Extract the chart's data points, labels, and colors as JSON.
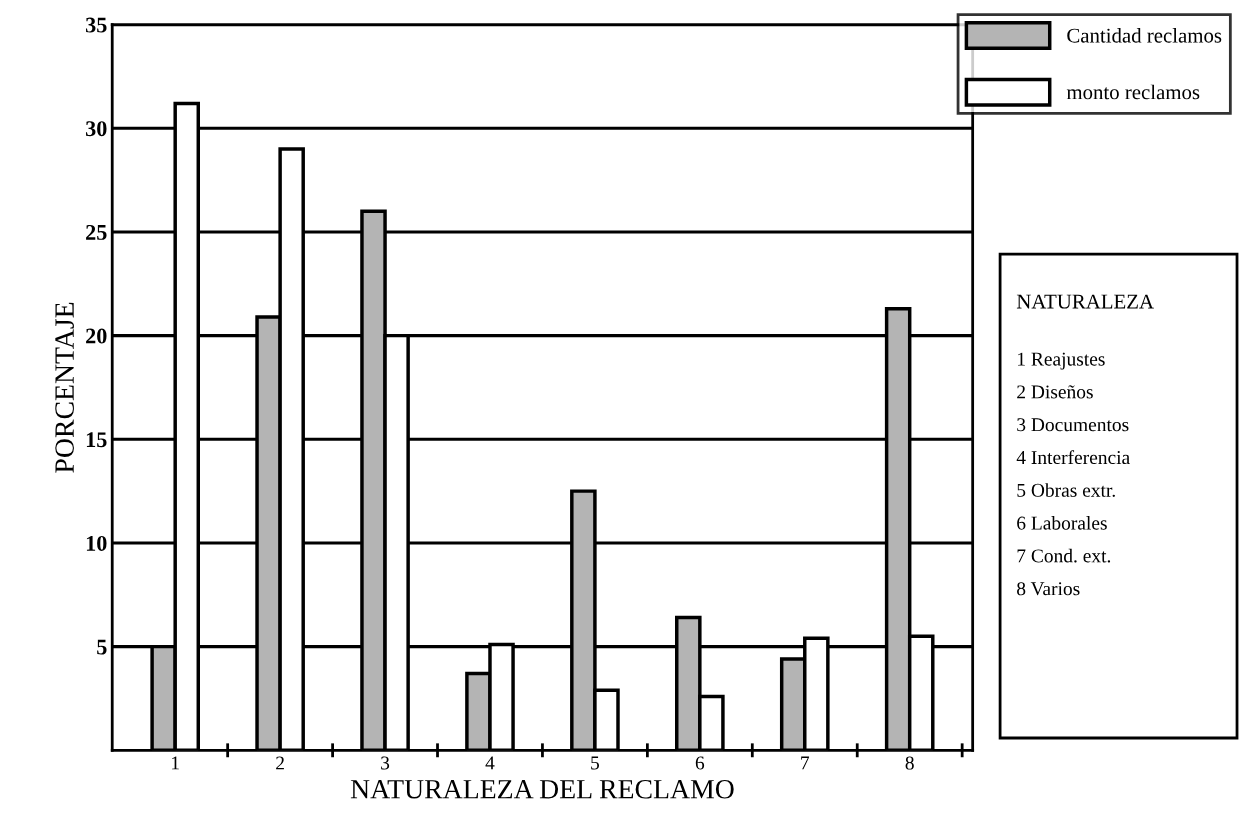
{
  "chart_data": {
    "type": "bar",
    "xlabel": "NATURALEZA DEL RECLAMO",
    "ylabel": "PORCENTAJE",
    "categories": [
      "1",
      "2",
      "3",
      "4",
      "5",
      "6",
      "7",
      "8"
    ],
    "series": [
      {
        "name": "Cantidad reclamos",
        "color": "#b4b4b4",
        "values": [
          5.0,
          20.9,
          26.0,
          3.7,
          12.5,
          6.4,
          4.4,
          21.3
        ]
      },
      {
        "name": "monto reclamos",
        "color": "#ffffff",
        "values": [
          31.2,
          29.0,
          20.0,
          5.1,
          2.9,
          2.6,
          5.4,
          5.5
        ]
      }
    ],
    "ylim": [
      0,
      35
    ],
    "yticks": [
      5,
      10,
      15,
      20,
      25,
      30,
      35
    ],
    "grid": "y",
    "legend": "top right",
    "annotations": [
      "NATURALEZA",
      "1 Reajustes",
      "2 Diseños",
      "3 Documentos",
      "4 Interferencia",
      "5 Obras extr.",
      "6 Laborales",
      "7 Cond. ext.",
      "8 Varios"
    ]
  }
}
